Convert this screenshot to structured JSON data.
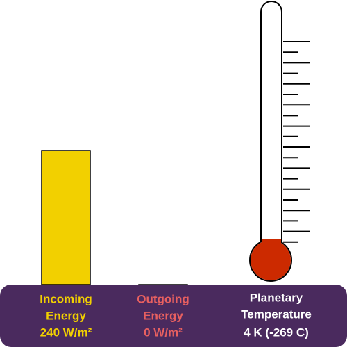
{
  "bars": [
    {
      "name": [
        "Incoming",
        "Energy"
      ],
      "value": 240,
      "value_label": "240 W/m²",
      "color": "#f2d000"
    },
    {
      "name": [
        "Outgoing",
        "Energy"
      ],
      "value": 0,
      "value_label": "0 W/m²",
      "color": "#e86060"
    }
  ],
  "thermometer": {
    "name": [
      "Planetary",
      "Temperature"
    ],
    "value": 4,
    "value_label": "4 K (-269 C)",
    "color": "#cc2a00"
  }
}
